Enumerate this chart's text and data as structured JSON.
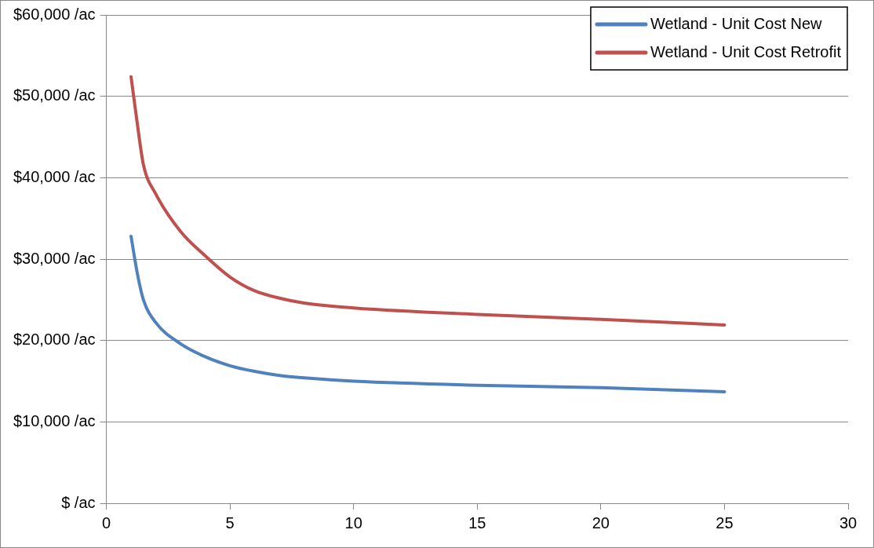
{
  "chart_data": {
    "type": "line",
    "x": [
      1,
      1.25,
      1.5,
      2,
      3,
      4,
      5,
      6,
      7,
      8,
      10,
      15,
      20,
      25
    ],
    "series": [
      {
        "name": "Wetland - Unit Cost New",
        "color": "#4f81bd",
        "values": [
          32800,
          28300,
          25000,
          22200,
          19600,
          18000,
          16900,
          16200,
          15700,
          15400,
          15000,
          14500,
          14200,
          13700
        ]
      },
      {
        "name": "Wetland - Unit Cost Retrofit",
        "color": "#c0504d",
        "values": [
          52400,
          46700,
          41600,
          38000,
          33400,
          30400,
          27800,
          26100,
          25200,
          24600,
          24000,
          23200,
          22600,
          21900
        ]
      }
    ],
    "xlim": [
      0,
      30
    ],
    "xticks": [
      0,
      5,
      10,
      15,
      20,
      25,
      30
    ],
    "ylim": [
      0,
      60000
    ],
    "yticks": [
      {
        "value": 0,
        "label": "$ /ac"
      },
      {
        "value": 10000,
        "label": "$10,000 /ac"
      },
      {
        "value": 20000,
        "label": "$20,000 /ac"
      },
      {
        "value": 30000,
        "label": "$30,000 /ac"
      },
      {
        "value": 40000,
        "label": "$40,000 /ac"
      },
      {
        "value": 50000,
        "label": "$50,000 /ac"
      },
      {
        "value": 60000,
        "label": "$60,000 /ac"
      }
    ],
    "grid": "y",
    "legend": "top right",
    "marker": "none",
    "line_style": "solid"
  }
}
